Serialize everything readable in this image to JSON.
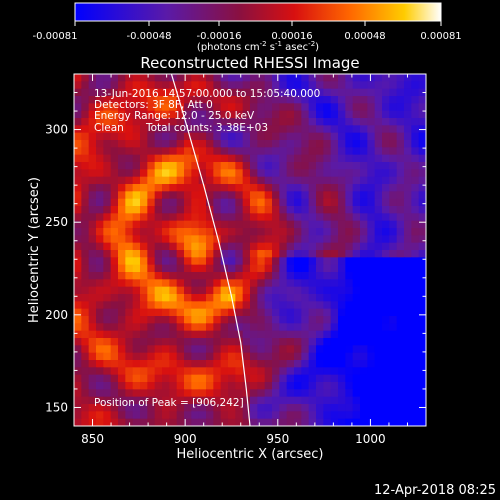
{
  "chart_data": {
    "type": "heatmap",
    "title": "Reconstructed RHESSI Image",
    "xlabel": "Heliocentric X (arcsec)",
    "ylabel": "Heliocentric Y (arcsec)",
    "xlim": [
      840,
      1030
    ],
    "ylim": [
      140,
      330
    ],
    "x_ticks": [
      850,
      900,
      950,
      1000
    ],
    "y_ticks": [
      150,
      200,
      250,
      300
    ],
    "colorbar": {
      "range": [
        -0.00081,
        0.00081
      ],
      "ticks": [
        "-0.00081",
        "-0.00048",
        "-0.00016",
        "0.00016",
        "0.00048",
        "0.00081"
      ],
      "unit_label": "(photons cm",
      "unit_exp1": "-2",
      "unit_mid": " s",
      "unit_exp2": "-1",
      "unit_mid2": " asec",
      "unit_exp3": "-2",
      "unit_end": ")"
    },
    "annotations": {
      "time_range": "13-Jun-2016 14:57:00.000 to 15:05:40.000",
      "detectors": "Detectors: 3F 8F, Att 0",
      "energy_range": "Energy Range: 12.0 - 25.0 keV",
      "clean_label": "Clean",
      "total_counts": "Total counts: 3.38E+03",
      "peak": "Position of Peak = [906,242]"
    },
    "peak_position": [
      906,
      242
    ],
    "limb_curve": [
      [
        892,
        332
      ],
      [
        900,
        305
      ],
      [
        910,
        270
      ],
      [
        918,
        240
      ],
      [
        925,
        210
      ],
      [
        930,
        185
      ],
      [
        933,
        160
      ],
      [
        935,
        140
      ]
    ],
    "grid": false
  },
  "footer": {
    "timestamp": "12-Apr-2018 08:25"
  },
  "colors": {
    "background": "#000000",
    "foreground": "#ffffff"
  }
}
